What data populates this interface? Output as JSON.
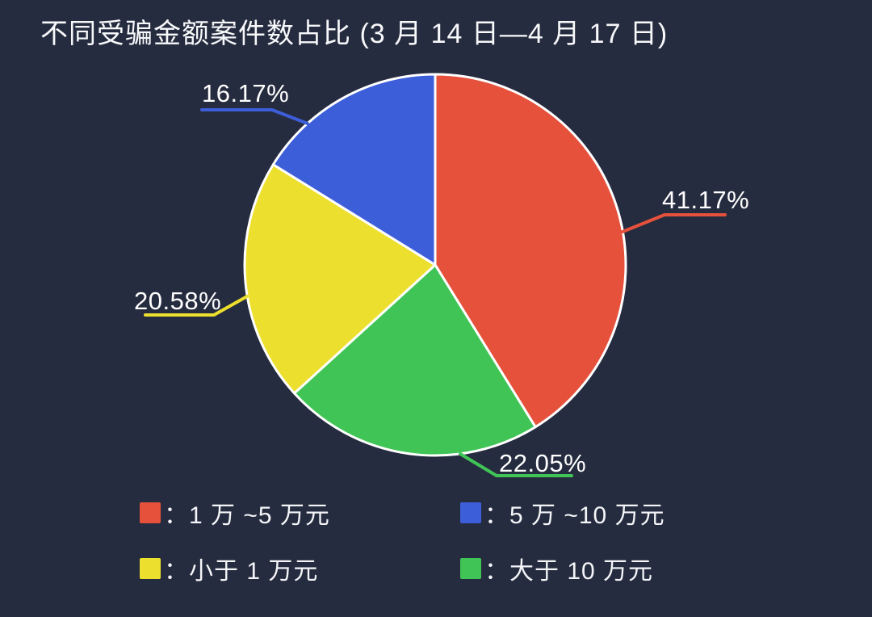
{
  "title": "不同受骗金额案件数占比 (3 月 14 日—4 月 17 日)",
  "colors": {
    "background": "#262C3F",
    "text": "#F7F8FA",
    "pie_border": "#FFFFFF",
    "red": "#E6513C",
    "green": "#3FC455",
    "yellow": "#EDDF2E",
    "blue": "#3D5ED9"
  },
  "chart_data": {
    "type": "pie",
    "title": "不同受骗金额案件数占比 (3 月 14 日—4 月 17 日)",
    "direction": "clockwise",
    "start_angle_deg_from_top": 0,
    "legend_position": "bottom",
    "slices": [
      {
        "label": "1 万 ~5 万元",
        "value": 41.17,
        "pct": "41.17%",
        "color": "#E6513C"
      },
      {
        "label": "大于 10 万元",
        "value": 22.05,
        "pct": "22.05%",
        "color": "#3FC455"
      },
      {
        "label": "小于 1 万元",
        "value": 20.58,
        "pct": "20.58%",
        "color": "#EDDF2E"
      },
      {
        "label": "5 万 ~10 万元",
        "value": 16.17,
        "pct": "16.17%",
        "color": "#3D5ED9"
      }
    ]
  },
  "legend": {
    "items": [
      {
        "color": "#E6513C",
        "label": "：1 万 ~5 万元"
      },
      {
        "color": "#3D5ED9",
        "label": "：5 万 ~10 万元"
      },
      {
        "color": "#EDDF2E",
        "label": "：小于 1 万元"
      },
      {
        "color": "#3FC455",
        "label": "：大于 10 万元"
      }
    ]
  }
}
